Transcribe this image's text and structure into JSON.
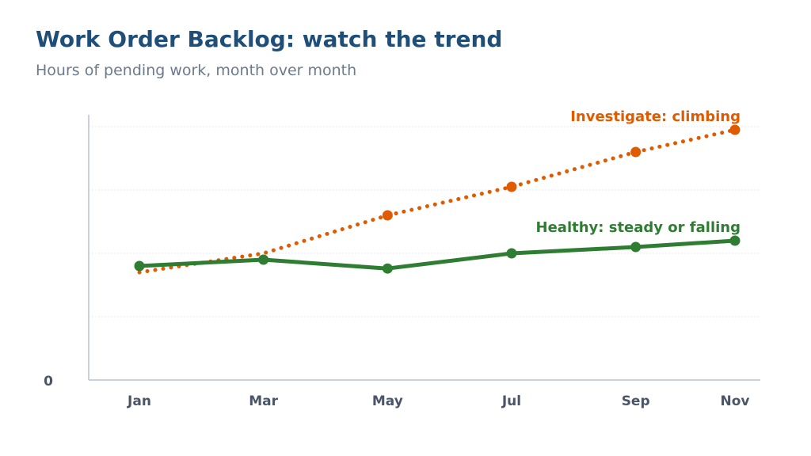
{
  "header": {
    "title": "Work Order Backlog: watch the trend",
    "subtitle": "Hours of pending work, month over month"
  },
  "chart_data": {
    "type": "line",
    "title": "Work Order Backlog: watch the trend",
    "subtitle": "Hours of pending work, month over month",
    "x": [
      "Jan",
      "Mar",
      "May",
      "Jul",
      "Sep",
      "Nov"
    ],
    "x_positions": [
      0,
      2,
      4,
      6,
      8,
      9.6
    ],
    "ylim": [
      0,
      4.2
    ],
    "y_ticks": [
      0,
      1,
      2,
      3,
      4
    ],
    "y_tick_labels": [
      "0",
      "",
      "",
      "",
      ""
    ],
    "grid": true,
    "series": [
      {
        "name": "Investigate: climbing",
        "style": "dotted",
        "color": "#e05a00",
        "values": [
          1.7,
          2.0,
          2.6,
          3.05,
          3.6,
          3.95
        ],
        "markers": [
          false,
          false,
          true,
          true,
          true,
          true
        ]
      },
      {
        "name": "Healthy: steady or falling",
        "style": "solid",
        "color": "#2e7d32",
        "values": [
          1.8,
          1.9,
          1.76,
          2.0,
          2.1,
          2.2
        ],
        "markers": [
          true,
          true,
          true,
          true,
          true,
          true
        ]
      }
    ],
    "annotations": [
      {
        "text": "Investigate: climbing",
        "series": 0,
        "color": "#e05a00"
      },
      {
        "text": "Healthy: steady or falling",
        "series": 1,
        "color": "#2e7d32"
      }
    ]
  }
}
